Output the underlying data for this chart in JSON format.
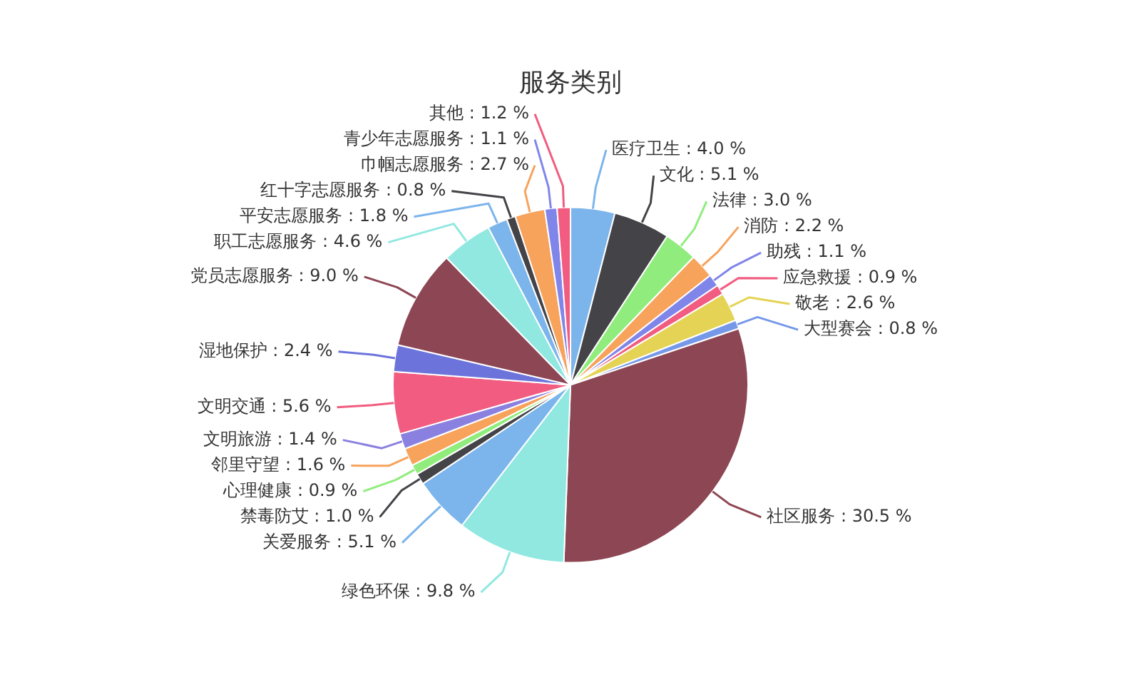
{
  "chart_data": {
    "type": "pie",
    "title": "服务类别",
    "categories": [
      "医疗卫生",
      "文化",
      "法律",
      "消防",
      "助残",
      "应急救援",
      "敬老",
      "大型赛会",
      "社区服务",
      "绿色环保",
      "关爱服务",
      "禁毒防艾",
      "心理健康",
      "邻里守望",
      "文明旅游",
      "文明交通",
      "湿地保护",
      "党员志愿服务",
      "职工志愿服务",
      "平安志愿服务",
      "红十字志愿服务",
      "巾帼志愿服务",
      "青少年志愿服务",
      "其他"
    ],
    "values": [
      4.0,
      5.1,
      3.0,
      2.2,
      1.1,
      0.9,
      2.6,
      0.8,
      30.5,
      9.8,
      5.1,
      1.0,
      0.9,
      1.6,
      1.4,
      5.6,
      2.4,
      9.0,
      4.6,
      1.8,
      0.8,
      2.7,
      1.1,
      1.2
    ],
    "value_labels": [
      "4.0 %",
      "5.1 %",
      "3.0 %",
      "2.2 %",
      "1.1 %",
      "0.9 %",
      "2.6 %",
      "0.8 %",
      "30.5 %",
      "9.8 %",
      "5.1 %",
      "1.0 %",
      "0.9 %",
      "1.6 %",
      "1.4 %",
      "5.6 %",
      "2.4 %",
      "9.0 %",
      "4.6 %",
      "1.8 %",
      "0.8 %",
      "2.7 %",
      "1.1 %",
      "1.2 %"
    ],
    "colors": [
      "#7cb5ec",
      "#434348",
      "#90ed7d",
      "#f7a35c",
      "#8085e9",
      "#f15c80",
      "#e4d354",
      "#7698e8",
      "#8d4653",
      "#91e8e1",
      "#7cb5ec",
      "#434348",
      "#90ed7d",
      "#f7a35c",
      "#8a80e0",
      "#f15c80",
      "#6c74dc",
      "#8d4653",
      "#91e8e1",
      "#7cb5ec",
      "#434348",
      "#f7a35c",
      "#8085e9",
      "#f15c80"
    ],
    "legend": false
  }
}
